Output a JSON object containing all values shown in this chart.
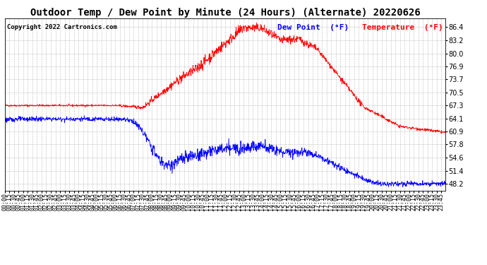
{
  "title": "Outdoor Temp / Dew Point by Minute (24 Hours) (Alternate) 20220626",
  "copyright": "Copyright 2022 Cartronics.com",
  "legend_dew": "Dew Point  (°F)",
  "legend_temp": "Temperature  (°F)",
  "temp_color": "red",
  "dew_color": "blue",
  "ylim_min": 46.5,
  "ylim_max": 88.5,
  "yticks": [
    48.2,
    51.4,
    54.6,
    57.8,
    60.9,
    64.1,
    67.3,
    70.5,
    73.7,
    76.9,
    80.0,
    83.2,
    86.4
  ],
  "background_color": "#ffffff",
  "grid_color": "#aaaaaa",
  "title_fontsize": 10,
  "copyright_fontsize": 6.5,
  "legend_fontsize": 8,
  "tick_fontsize": 6,
  "seed": 42
}
